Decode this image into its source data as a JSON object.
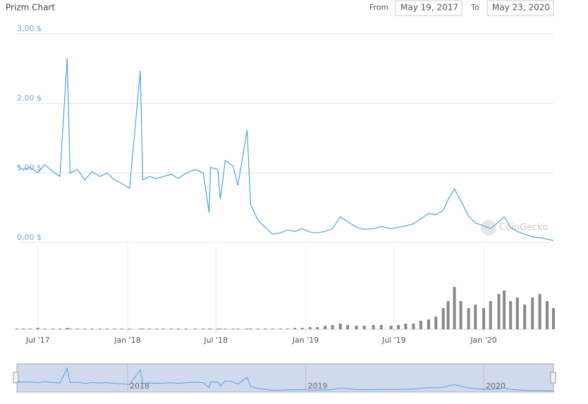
{
  "chart_data": {
    "type": "line",
    "title": "Prizm Chart",
    "range_from_label": "From",
    "range_from": "May 19, 2017",
    "range_to_label": "To",
    "range_to": "May 23, 2020",
    "watermark": "CoinGecko",
    "xlim": [
      "2017-05-19",
      "2020-05-23"
    ],
    "ylim": [
      0,
      3
    ],
    "yticks": [
      {
        "value": 0,
        "label": "0,00 $"
      },
      {
        "value": 1,
        "label": "1,00 $"
      },
      {
        "value": 2,
        "label": "2,00 $"
      },
      {
        "value": 3,
        "label": "3,00 $"
      }
    ],
    "xticks": [
      {
        "value": "2017-07-01",
        "label": "Jul '17"
      },
      {
        "value": "2018-01-01",
        "label": "Jan '18"
      },
      {
        "value": "2018-07-01",
        "label": "Jul '18"
      },
      {
        "value": "2019-01-01",
        "label": "Jan '19"
      },
      {
        "value": "2019-07-01",
        "label": "Jul '19"
      },
      {
        "value": "2020-01-01",
        "label": "Jan '20"
      }
    ],
    "navigator_ticks": [
      {
        "value": "2018-01-01",
        "label": "2018"
      },
      {
        "value": "2019-01-01",
        "label": "2019"
      },
      {
        "value": "2020-01-01",
        "label": "2020"
      }
    ],
    "grid": true,
    "volume_ylim": [
      0,
      70
    ],
    "x": [
      "2017-05-19",
      "2017-06-01",
      "2017-06-15",
      "2017-07-01",
      "2017-07-15",
      "2017-08-01",
      "2017-08-15",
      "2017-08-30",
      "2017-09-05",
      "2017-09-20",
      "2017-10-05",
      "2017-10-20",
      "2017-11-05",
      "2017-11-20",
      "2017-12-05",
      "2017-12-20",
      "2018-01-05",
      "2018-01-27",
      "2018-02-01",
      "2018-02-15",
      "2018-03-01",
      "2018-03-15",
      "2018-04-01",
      "2018-04-15",
      "2018-05-01",
      "2018-05-20",
      "2018-06-05",
      "2018-06-17",
      "2018-06-20",
      "2018-07-05",
      "2018-07-10",
      "2018-07-20",
      "2018-08-05",
      "2018-08-15",
      "2018-09-03",
      "2018-09-10",
      "2018-09-25",
      "2018-10-10",
      "2018-10-25",
      "2018-11-10",
      "2018-11-25",
      "2018-12-10",
      "2018-12-25",
      "2019-01-10",
      "2019-01-25",
      "2019-02-10",
      "2019-02-25",
      "2019-03-13",
      "2019-03-28",
      "2019-04-15",
      "2019-05-01",
      "2019-05-20",
      "2019-06-05",
      "2019-06-25",
      "2019-07-10",
      "2019-07-25",
      "2019-08-10",
      "2019-08-25",
      "2019-09-10",
      "2019-09-25",
      "2019-10-10",
      "2019-10-20",
      "2019-11-02",
      "2019-11-15",
      "2019-12-01",
      "2019-12-15",
      "2020-01-01",
      "2020-01-15",
      "2020-02-01",
      "2020-02-12",
      "2020-02-25",
      "2020-03-10",
      "2020-03-25",
      "2020-04-10",
      "2020-04-25",
      "2020-05-10",
      "2020-05-23"
    ],
    "series": [
      {
        "name": "Price",
        "color": "#4aa3df",
        "values": [
          1.1,
          1.05,
          1.08,
          1.0,
          1.12,
          1.02,
          0.95,
          2.65,
          1.0,
          1.05,
          0.9,
          1.02,
          0.95,
          1.0,
          0.9,
          0.85,
          0.78,
          2.47,
          0.9,
          0.95,
          0.92,
          0.95,
          0.98,
          0.92,
          1.0,
          1.05,
          1.0,
          0.43,
          1.08,
          1.05,
          0.62,
          1.18,
          1.1,
          0.82,
          1.62,
          0.55,
          0.32,
          0.22,
          0.12,
          0.14,
          0.18,
          0.16,
          0.2,
          0.15,
          0.14,
          0.16,
          0.2,
          0.37,
          0.3,
          0.22,
          0.19,
          0.2,
          0.23,
          0.2,
          0.22,
          0.24,
          0.27,
          0.34,
          0.42,
          0.4,
          0.46,
          0.62,
          0.77,
          0.6,
          0.38,
          0.28,
          0.24,
          0.2,
          0.3,
          0.37,
          0.22,
          0.16,
          0.12,
          0.08,
          0.07,
          0.05,
          0.03
        ]
      },
      {
        "name": "Volume",
        "axis": "volume",
        "color": "#888888",
        "values": [
          1,
          1,
          1,
          2,
          1,
          1,
          1,
          2,
          1,
          1,
          1,
          1,
          1,
          1,
          1,
          1,
          1,
          1,
          1,
          1,
          1,
          1,
          1,
          1,
          1,
          1,
          1,
          1,
          1,
          1,
          1,
          1,
          1,
          1,
          1,
          1,
          1,
          1,
          1,
          1,
          1,
          2,
          2,
          3,
          3,
          5,
          6,
          8,
          6,
          5,
          5,
          6,
          6,
          5,
          6,
          8,
          8,
          12,
          14,
          18,
          30,
          40,
          60,
          40,
          30,
          35,
          30,
          40,
          50,
          55,
          40,
          45,
          35,
          45,
          50,
          40,
          30
        ]
      }
    ]
  }
}
